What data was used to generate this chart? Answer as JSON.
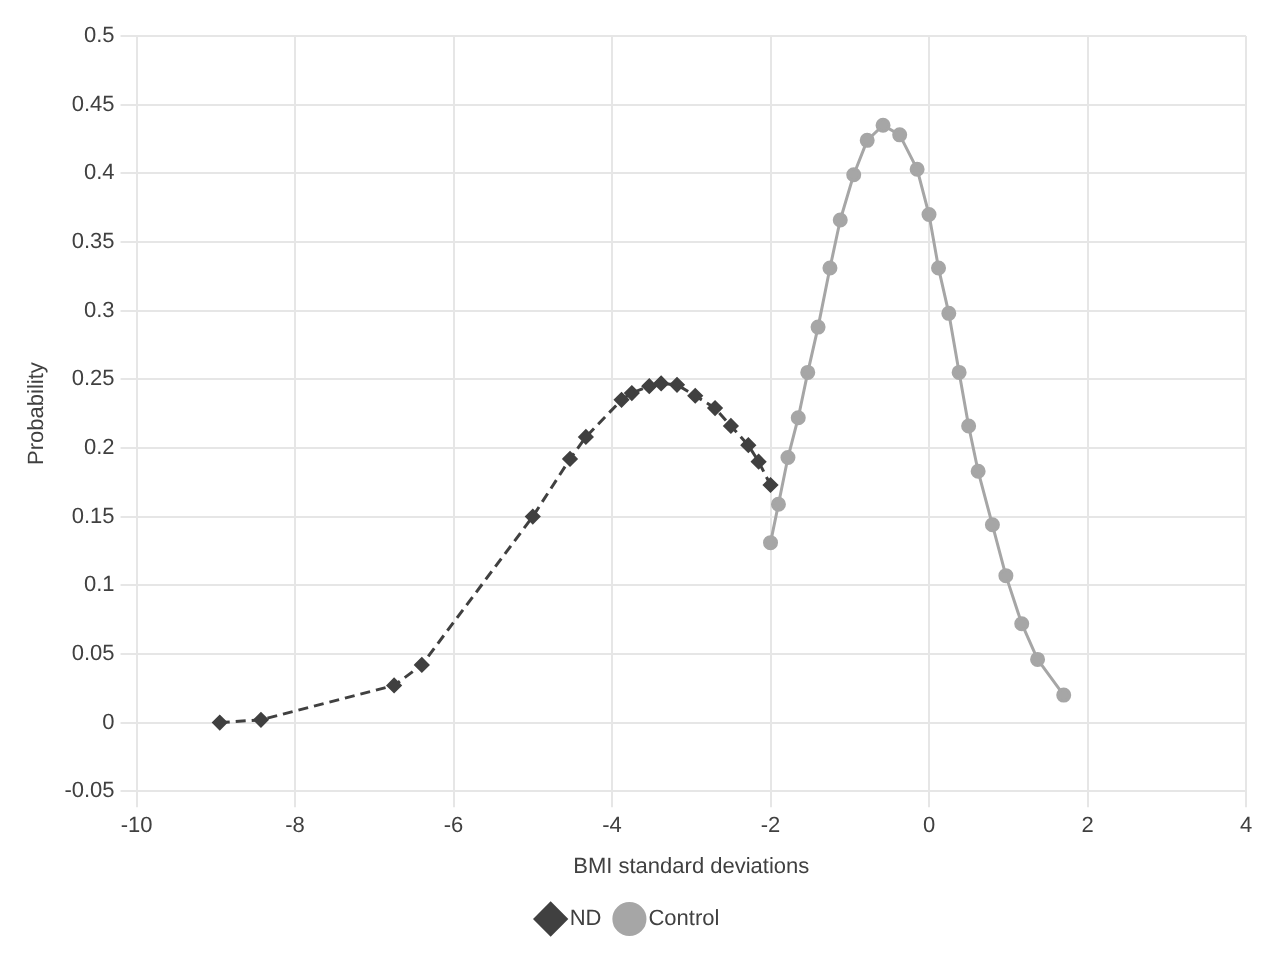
{
  "chart_data": {
    "type": "line",
    "xlabel": "BMI standard deviations",
    "ylabel": "Probability",
    "xlim": [
      -10,
      4
    ],
    "xticks": [
      -10,
      -8,
      -6,
      -4,
      -2,
      0,
      2,
      4
    ],
    "ylim": [
      -0.05,
      0.5
    ],
    "yticks": [
      -0.05,
      0,
      0.05,
      0.1,
      0.15,
      0.2,
      0.25,
      0.3,
      0.35,
      0.4,
      0.45,
      0.5
    ],
    "grid": true,
    "legend": "bottom",
    "series": [
      {
        "name": "ND",
        "color": "#404040",
        "marker": "diamond",
        "line_style": "dashed",
        "x": [
          -8.95,
          -8.43,
          -6.75,
          -6.4,
          -5.0,
          -4.53,
          -4.33,
          -3.88,
          -3.75,
          -3.53,
          -3.38,
          -3.18,
          -2.95,
          -2.7,
          -2.5,
          -2.28,
          -2.15,
          -2.0
        ],
        "values": [
          0,
          0.002,
          0.027,
          0.042,
          0.15,
          0.192,
          0.208,
          0.235,
          0.24,
          0.245,
          0.247,
          0.246,
          0.238,
          0.229,
          0.216,
          0.202,
          0.19,
          0.173
        ]
      },
      {
        "name": "Control",
        "color": "#a6a6a6",
        "marker": "circle",
        "line_style": "solid",
        "x": [
          -2.0,
          -1.9,
          -1.78,
          -1.65,
          -1.53,
          -1.4,
          -1.25,
          -1.12,
          -0.95,
          -0.78,
          -0.58,
          -0.37,
          -0.15,
          0.0,
          0.12,
          0.25,
          0.38,
          0.5,
          0.62,
          0.8,
          0.97,
          1.17,
          1.37,
          1.7
        ],
        "values": [
          0.131,
          0.159,
          0.193,
          0.222,
          0.255,
          0.288,
          0.331,
          0.366,
          0.399,
          0.424,
          0.435,
          0.428,
          0.403,
          0.37,
          0.331,
          0.298,
          0.255,
          0.216,
          0.183,
          0.144,
          0.107,
          0.072,
          0.046,
          0.02
        ]
      }
    ]
  }
}
